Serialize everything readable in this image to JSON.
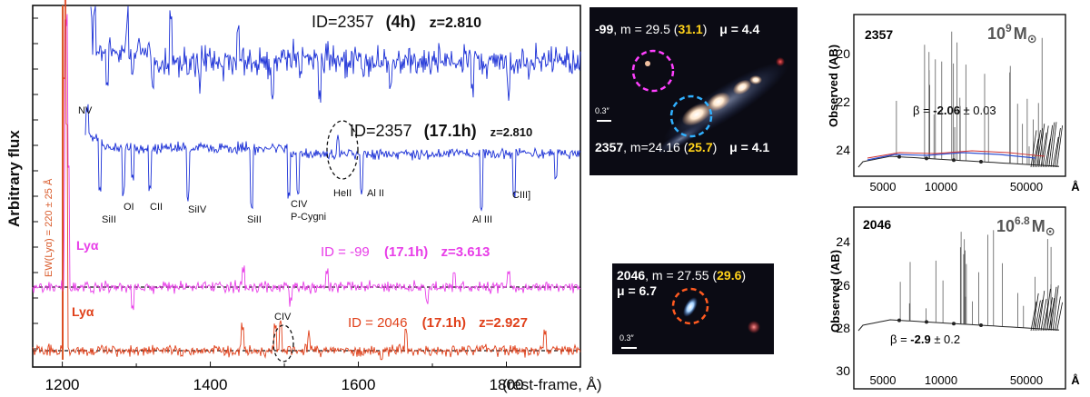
{
  "spectra_panel": {
    "ylabel": "Arbitrary flux",
    "xlabel": "(rest-frame, Å)",
    "x_ticks": [
      "1200",
      "1400",
      "1600",
      "1800"
    ],
    "x_range": [
      1160,
      1900
    ],
    "ew_label": "EW(Lyα) = 220 ± 25 Å",
    "spec1": {
      "id": "ID=2357",
      "time": "(4h)",
      "z": "z=2.810"
    },
    "spec2": {
      "id": "ID=2357",
      "time": "(17.1h)",
      "z": "z=2.810"
    },
    "spec3": {
      "id": "ID = -99",
      "time": "(17.1h)",
      "z": "z=3.613",
      "line": "Lyα"
    },
    "spec4": {
      "id": "ID = 2046",
      "time": "(17.1h)",
      "z": "z=2.927",
      "line": "Lyα",
      "feature": "CIV"
    },
    "line_labels": {
      "nv": "NV",
      "si2a": "SiII",
      "oi": "OI",
      "cii": "CII",
      "siv": "SiIV",
      "si2b": "SiII",
      "civ": "CIV",
      "pcyg": "P-Cygni",
      "heii": "HeII",
      "al2": "Al II",
      "al3": "Al III",
      "c3": "CIII]"
    },
    "colors": {
      "blue": "#1a2fd6",
      "magenta": "#e83ee8",
      "red": "#e0401a",
      "ew_line": "#d95a2a"
    }
  },
  "image_2357": {
    "a_id": "-99",
    "a_m": ", m = 29.5 (",
    "a_m2": "31.1",
    "a_mu": "μ = 4.4",
    "b_id": "2357",
    "b_m": ", m=24.16 (",
    "b_m2": "25.7",
    "b_mu": "μ = 4.1",
    "scale": "0.3″",
    "close": ")"
  },
  "image_2046": {
    "id": "2046",
    "m": ", m = 27.55 (",
    "m2": "29.6",
    "close": ")",
    "mu": "μ = 6.7",
    "scale": "0.3″"
  },
  "sed_2357": {
    "id": "2357",
    "mass_base": "10",
    "mass_exp": "9",
    "mass_unit": "M",
    "mass_sym": "⊙",
    "ylabel": "Observed (AB)",
    "y_ticks": [
      "20",
      "22",
      "24"
    ],
    "x_ticks": [
      "5000",
      "10000",
      "50000"
    ],
    "x_unit": "Å",
    "beta_label": "β = ",
    "beta_value": "-2.06",
    "beta_err": " ± 0.03"
  },
  "sed_2046": {
    "id": "2046",
    "mass_base": "10",
    "mass_exp": "6.8",
    "mass_unit": "M",
    "mass_sym": "⊙",
    "ylabel": "Observed (AB)",
    "y_ticks": [
      "24",
      "26",
      "28",
      "30"
    ],
    "x_ticks": [
      "5000",
      "10000",
      "50000"
    ],
    "x_unit": "Å",
    "beta_label": "β = ",
    "beta_value": "-2.9",
    "beta_err": " ± 0.2"
  }
}
